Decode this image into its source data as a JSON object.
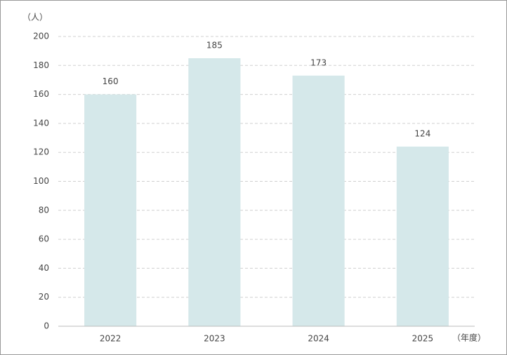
{
  "chart_data": {
    "type": "bar",
    "y_axis_label": "（人）",
    "x_axis_label": "（年度）",
    "categories": [
      "2022",
      "2023",
      "2024",
      "2025"
    ],
    "values": [
      160,
      185,
      173,
      124
    ],
    "color": "#d5e8ea",
    "ylim": [
      0,
      200
    ],
    "yticks": [
      0,
      20,
      40,
      60,
      80,
      100,
      120,
      140,
      160,
      180,
      200
    ],
    "grid": true
  }
}
